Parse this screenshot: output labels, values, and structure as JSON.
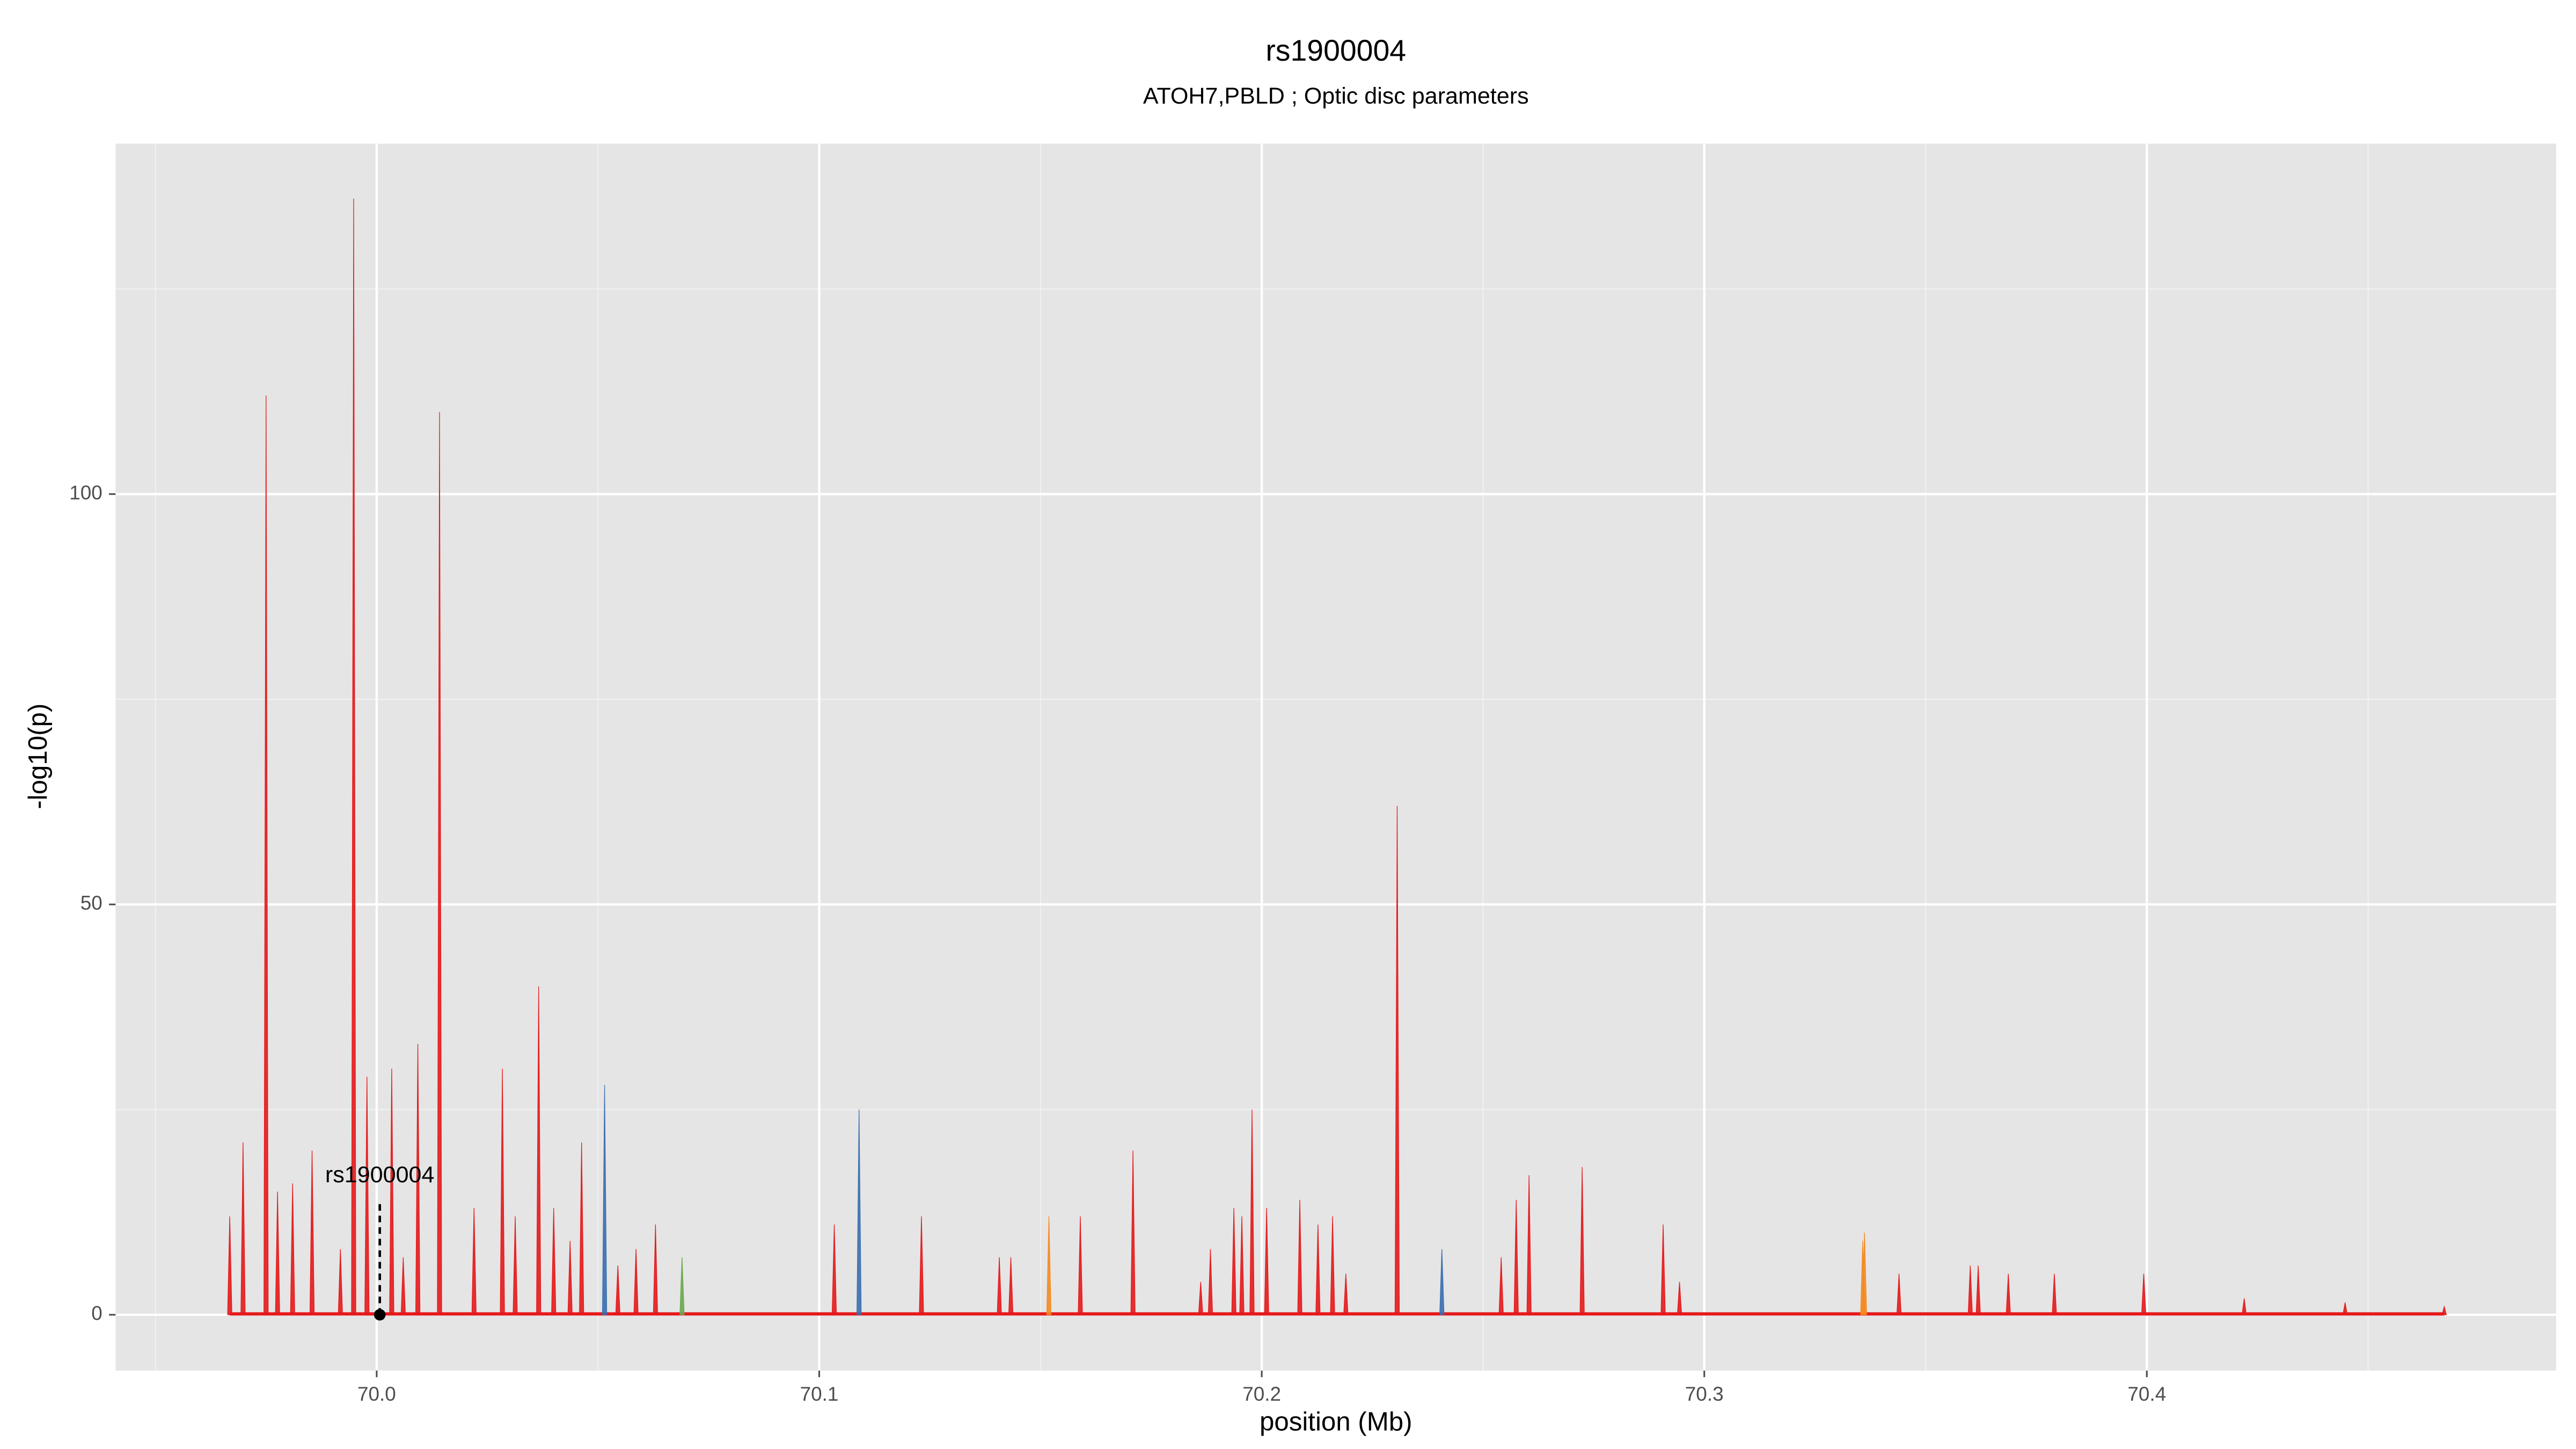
{
  "chart_data": {
    "type": "spike",
    "title": "rs1900004",
    "subtitle": "ATOH7,PBLD ; Optic disc parameters",
    "x_label": "position (Mb)",
    "y_label": "-log10(p)",
    "xlim": [
      69.941,
      70.4925
    ],
    "ylim": [
      -6.8,
      142.7
    ],
    "xticks": [
      {
        "value": 70,
        "label": "70.0"
      },
      70.1,
      70.2,
      70.3,
      70.4
    ],
    "yticks": [
      0,
      50,
      100
    ],
    "x_minor_ticks": [
      69.95,
      70.05,
      70.15,
      70.25,
      70.35,
      70.45
    ],
    "y_minor_ticks": [
      25,
      75,
      125
    ],
    "grid": true,
    "series": [
      {
        "color": "#e41a1c",
        "x": [
          69.9668,
          69.9698,
          69.975,
          69.9776,
          69.981,
          69.9854,
          69.9918,
          69.9948,
          69.9978,
          70.0034,
          70.006,
          70.0093,
          70.0142,
          70.022,
          70.0284,
          70.0313,
          70.0366,
          70.04,
          70.0437,
          70.0463,
          70.0545,
          70.0586,
          70.063,
          70.1034,
          70.1231,
          70.1407,
          70.1433,
          70.159,
          70.1709,
          70.1862,
          70.1884,
          70.1937,
          70.1955,
          70.1978,
          70.2011,
          70.2086,
          70.2127,
          70.216,
          70.219,
          70.2306,
          70.2541,
          70.2575,
          70.2604,
          70.2724,
          70.2907,
          70.2944,
          70.344,
          70.3601,
          70.3619,
          70.3687,
          70.3791,
          70.3993,
          70.422,
          70.4448,
          70.4672
        ],
        "values": [
          12,
          21,
          112,
          15,
          16,
          20,
          8,
          136,
          29,
          30,
          7,
          33,
          110,
          13,
          30,
          12,
          40,
          13,
          9,
          21,
          6,
          8,
          11,
          11,
          12,
          7,
          7,
          12,
          20,
          4,
          8,
          13,
          12,
          25,
          13,
          14,
          11,
          12,
          5,
          62,
          7,
          14,
          17,
          18,
          11,
          4,
          5,
          6,
          6,
          5,
          5,
          5,
          2,
          1.5,
          1
        ]
      },
      {
        "color": "#3a6fb0",
        "x": [
          70.0515,
          70.109,
          70.2407
        ],
        "values": [
          28,
          25,
          8
        ]
      },
      {
        "color": "#f5891f",
        "x": [
          70.1519,
          70.3358,
          70.3362
        ],
        "values": [
          12,
          9,
          10
        ]
      },
      {
        "color": "#6aa84f",
        "x": [
          70.069
        ],
        "values": [
          7
        ]
      }
    ],
    "annotation": {
      "text": "rs1900004",
      "x": 70.0007,
      "y": 16.9,
      "point_y": 0
    }
  }
}
